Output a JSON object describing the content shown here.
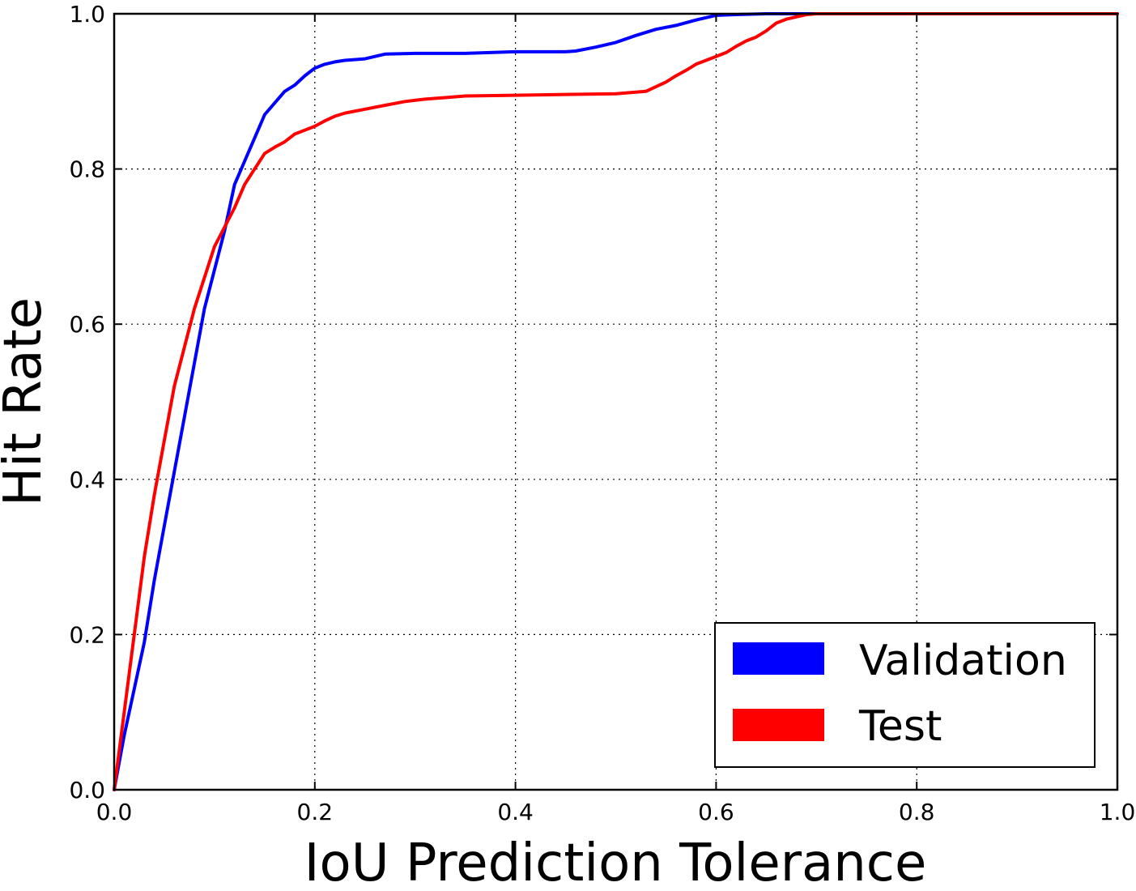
{
  "chart_data": {
    "type": "line",
    "title": "",
    "xlabel": "IoU Prediction Tolerance",
    "ylabel": "Hit Rate",
    "xlim": [
      0.0,
      1.0
    ],
    "ylim": [
      0.0,
      1.0
    ],
    "grid": true,
    "xticks": [
      "0.0",
      "0.2",
      "0.4",
      "0.6",
      "0.8",
      "1.0"
    ],
    "yticks": [
      "0.0",
      "0.2",
      "0.4",
      "0.6",
      "0.8",
      "1.0"
    ],
    "legend_position": "bottom-right",
    "series": [
      {
        "name": "Validation",
        "color": "#0000ff",
        "x": [
          0.0,
          0.01,
          0.02,
          0.03,
          0.04,
          0.05,
          0.06,
          0.07,
          0.08,
          0.09,
          0.1,
          0.11,
          0.12,
          0.13,
          0.14,
          0.15,
          0.16,
          0.17,
          0.18,
          0.19,
          0.2,
          0.21,
          0.22,
          0.23,
          0.25,
          0.27,
          0.3,
          0.35,
          0.4,
          0.45,
          0.46,
          0.48,
          0.5,
          0.52,
          0.54,
          0.56,
          0.58,
          0.6,
          0.62,
          0.65,
          0.7,
          0.8,
          1.0
        ],
        "y": [
          0.0,
          0.07,
          0.13,
          0.19,
          0.27,
          0.34,
          0.41,
          0.48,
          0.55,
          0.62,
          0.67,
          0.72,
          0.78,
          0.81,
          0.84,
          0.87,
          0.885,
          0.9,
          0.908,
          0.92,
          0.93,
          0.935,
          0.938,
          0.94,
          0.942,
          0.948,
          0.949,
          0.949,
          0.951,
          0.951,
          0.952,
          0.957,
          0.963,
          0.972,
          0.98,
          0.985,
          0.992,
          0.998,
          0.999,
          1.0,
          1.0,
          1.0,
          1.0
        ]
      },
      {
        "name": "Test",
        "color": "#ff0000",
        "x": [
          0.0,
          0.01,
          0.02,
          0.03,
          0.04,
          0.05,
          0.06,
          0.07,
          0.08,
          0.09,
          0.1,
          0.11,
          0.12,
          0.13,
          0.14,
          0.15,
          0.16,
          0.17,
          0.18,
          0.19,
          0.2,
          0.21,
          0.22,
          0.23,
          0.25,
          0.27,
          0.29,
          0.31,
          0.33,
          0.35,
          0.4,
          0.45,
          0.5,
          0.52,
          0.53,
          0.55,
          0.56,
          0.57,
          0.58,
          0.6,
          0.61,
          0.62,
          0.63,
          0.64,
          0.65,
          0.66,
          0.67,
          0.68,
          0.69,
          0.7,
          0.75,
          0.8,
          1.0
        ],
        "y": [
          0.0,
          0.1,
          0.2,
          0.3,
          0.38,
          0.45,
          0.52,
          0.57,
          0.62,
          0.66,
          0.7,
          0.725,
          0.75,
          0.78,
          0.8,
          0.82,
          0.828,
          0.835,
          0.845,
          0.85,
          0.855,
          0.862,
          0.868,
          0.872,
          0.877,
          0.882,
          0.887,
          0.89,
          0.892,
          0.894,
          0.895,
          0.896,
          0.897,
          0.899,
          0.9,
          0.912,
          0.92,
          0.927,
          0.935,
          0.945,
          0.95,
          0.958,
          0.965,
          0.97,
          0.978,
          0.988,
          0.993,
          0.996,
          0.999,
          1.0,
          1.0,
          1.0,
          1.0
        ]
      }
    ]
  }
}
